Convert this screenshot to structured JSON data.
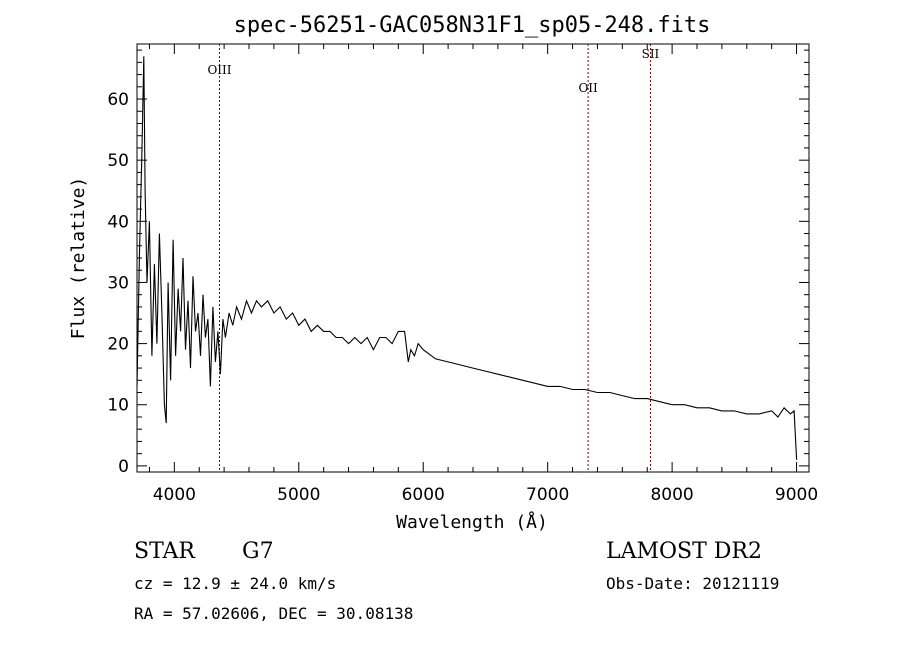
{
  "chart_data": {
    "type": "line",
    "title": "spec-56251-GAC058N31F1_sp05-248.fits",
    "xlabel": "Wavelength (Å)",
    "ylabel": "Flux (relative)",
    "xlim": [
      3700,
      9100
    ],
    "ylim": [
      -1,
      69
    ],
    "xticks": [
      4000,
      5000,
      6000,
      7000,
      8000,
      9000
    ],
    "yticks": [
      0,
      10,
      20,
      30,
      40,
      50,
      60
    ],
    "grid": false,
    "series": [
      {
        "line_color": "#000000",
        "x": [
          3700,
          3720,
          3740,
          3755,
          3765,
          3780,
          3800,
          3820,
          3840,
          3860,
          3880,
          3900,
          3920,
          3935,
          3950,
          3970,
          3990,
          4010,
          4030,
          4050,
          4070,
          4090,
          4110,
          4130,
          4150,
          4170,
          4190,
          4210,
          4230,
          4250,
          4270,
          4290,
          4310,
          4330,
          4350,
          4370,
          4390,
          4410,
          4440,
          4470,
          4500,
          4540,
          4580,
          4620,
          4660,
          4700,
          4750,
          4800,
          4850,
          4900,
          4950,
          5000,
          5050,
          5100,
          5150,
          5200,
          5250,
          5300,
          5350,
          5400,
          5450,
          5500,
          5550,
          5600,
          5650,
          5700,
          5750,
          5800,
          5850,
          5880,
          5900,
          5930,
          5960,
          6000,
          6100,
          6200,
          6300,
          6400,
          6500,
          6600,
          6700,
          6800,
          6900,
          7000,
          7100,
          7200,
          7300,
          7400,
          7500,
          7600,
          7700,
          7800,
          7900,
          8000,
          8100,
          8200,
          8300,
          8400,
          8500,
          8600,
          8700,
          8800,
          8850,
          8900,
          8950,
          8980,
          9000
        ],
        "values": [
          13,
          35,
          52,
          67,
          45,
          30,
          40,
          18,
          33,
          20,
          38,
          25,
          10,
          7,
          30,
          14,
          37,
          18,
          29,
          22,
          34,
          19,
          27,
          16,
          31,
          22,
          25,
          18,
          28,
          21,
          24,
          13,
          26,
          17,
          22,
          15,
          24,
          21,
          25,
          23,
          26,
          24,
          27,
          25,
          27,
          26,
          27,
          25,
          26,
          24,
          25,
          23,
          24,
          22,
          23,
          22,
          22,
          21,
          21,
          20,
          21,
          20,
          21,
          19,
          21,
          21,
          20,
          22,
          22,
          17,
          19,
          18,
          20,
          19,
          17.5,
          17,
          16.5,
          16,
          15.5,
          15,
          14.5,
          14,
          13.5,
          13,
          13,
          12.5,
          12.5,
          12,
          12,
          11.5,
          11,
          11,
          10.5,
          10,
          10,
          9.5,
          9.5,
          9,
          9,
          8.5,
          8.5,
          9,
          8,
          9.5,
          8.5,
          9,
          1
        ]
      }
    ],
    "annotations": [
      {
        "label": "OIII",
        "x": 4363,
        "line_color": "#8b0000"
      },
      {
        "label": "OII",
        "x": 7325,
        "line_color": "#8b0000"
      },
      {
        "label": "SII",
        "x": 7826,
        "line_color": "#8b0000"
      }
    ]
  },
  "info": {
    "class_label": "STAR",
    "subclass_label": "G7",
    "survey": "LAMOST DR2",
    "cz_line": "cz = 12.9 ± 24.0 km/s",
    "obs_date": "Obs-Date: 20121119",
    "radec_line": "RA =  57.02606, DEC =  30.08138"
  }
}
